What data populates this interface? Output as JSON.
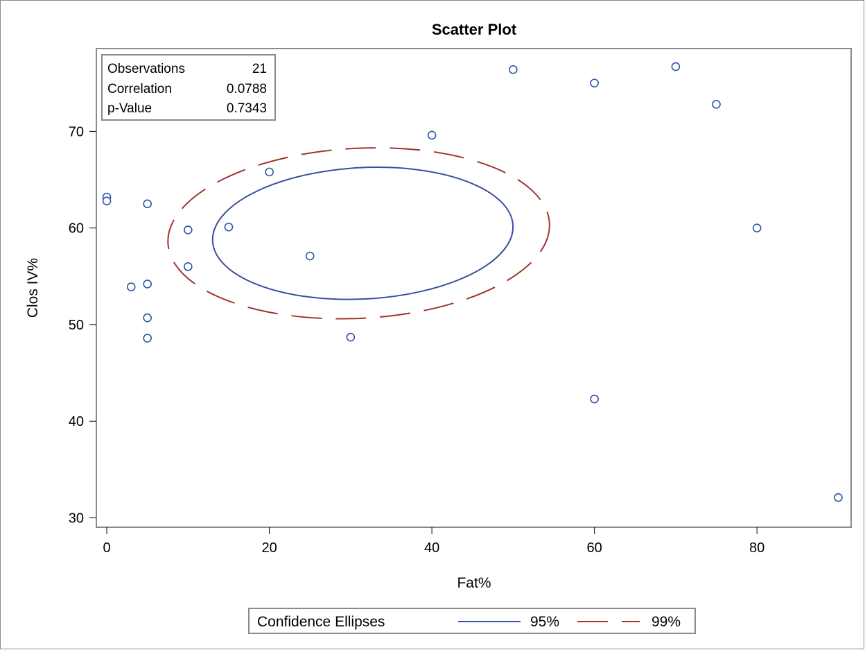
{
  "chart_data": {
    "type": "scatter",
    "title": "Scatter Plot",
    "xlabel": "Fat%",
    "ylabel": "Clos IV%",
    "xlim": [
      -1.2,
      91.5
    ],
    "ylim": [
      29.1,
      78.5
    ],
    "xticks": [
      0,
      20,
      40,
      60,
      80
    ],
    "yticks": [
      30,
      40,
      50,
      60,
      70
    ],
    "grid": false,
    "points": [
      {
        "x": 0,
        "y": 63.2
      },
      {
        "x": 0,
        "y": 62.8
      },
      {
        "x": 5,
        "y": 62.5
      },
      {
        "x": 10,
        "y": 59.8
      },
      {
        "x": 15,
        "y": 60.1
      },
      {
        "x": 20,
        "y": 65.8
      },
      {
        "x": 10,
        "y": 56.0
      },
      {
        "x": 3,
        "y": 53.9
      },
      {
        "x": 5,
        "y": 54.2
      },
      {
        "x": 5,
        "y": 50.7
      },
      {
        "x": 5,
        "y": 48.6
      },
      {
        "x": 25,
        "y": 57.1
      },
      {
        "x": 30,
        "y": 48.7
      },
      {
        "x": 40,
        "y": 69.6
      },
      {
        "x": 50,
        "y": 76.4
      },
      {
        "x": 60,
        "y": 75.0
      },
      {
        "x": 60,
        "y": 42.3
      },
      {
        "x": 70,
        "y": 76.7
      },
      {
        "x": 75,
        "y": 72.8
      },
      {
        "x": 80,
        "y": 60.0
      },
      {
        "x": 90,
        "y": 32.1
      }
    ],
    "ellipses": [
      {
        "label": "95%",
        "cx": 31.5,
        "cy": 59.45,
        "rx": 18.5,
        "ry": 6.8,
        "angle_deg": 3,
        "color": "#3b4ea0",
        "style": "solid"
      },
      {
        "label": "99%",
        "cx": 31.0,
        "cy": 59.45,
        "rx": 23.5,
        "ry": 8.8,
        "angle_deg": 3,
        "color": "#a0342c",
        "style": "dashed"
      }
    ],
    "point_color": "#2d54a8",
    "stats_box": {
      "position": "top-left",
      "rows": [
        {
          "label": "Observations",
          "value": "21"
        },
        {
          "label": "Correlation",
          "value": "0.0788"
        },
        {
          "label": "p-Value",
          "value": "0.7343"
        }
      ]
    },
    "legend": {
      "placement": "bottom",
      "title": "Confidence Ellipses",
      "entries": [
        {
          "label": "95%",
          "color": "#3b4ea0",
          "style": "solid"
        },
        {
          "label": "99%",
          "color": "#a0342c",
          "style": "dashed"
        }
      ]
    }
  }
}
